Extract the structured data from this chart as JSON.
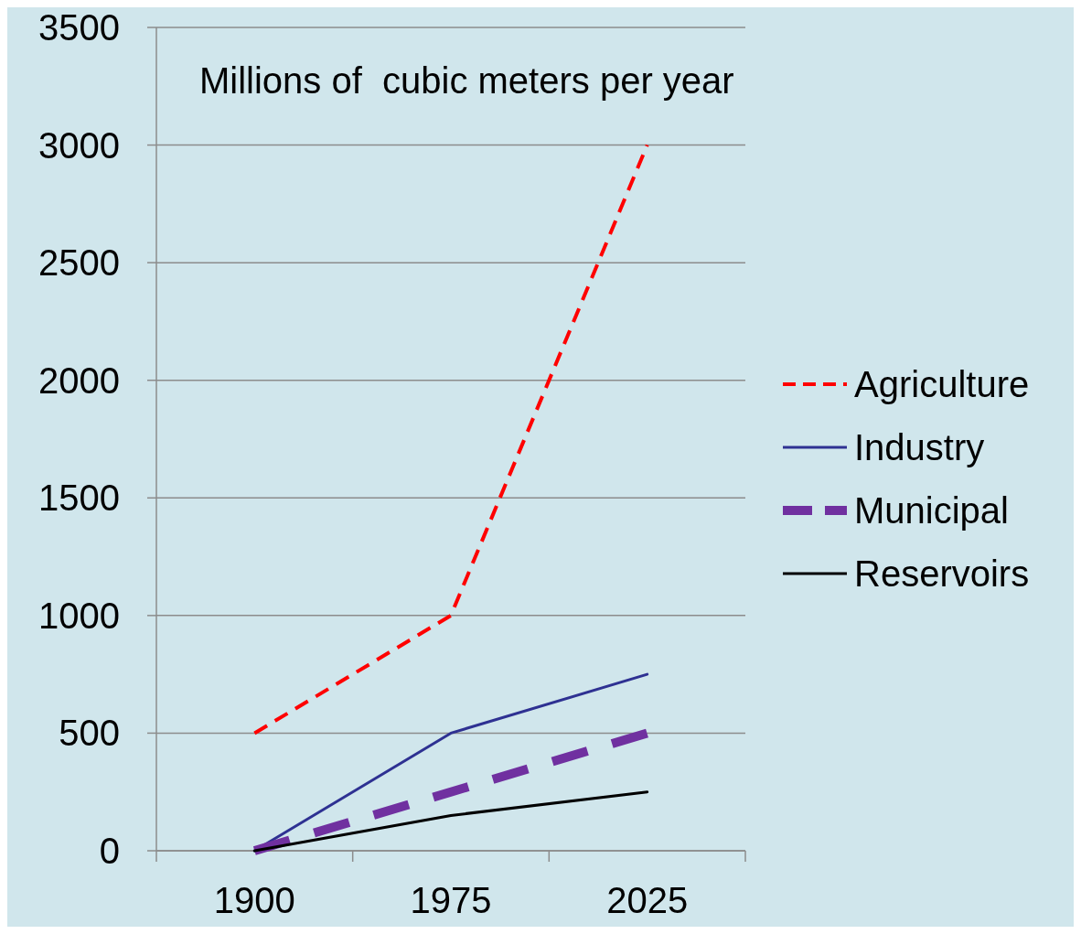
{
  "chart_data": {
    "type": "line",
    "ylabel": "Millions of  cubic meters per year",
    "categories": [
      "1900",
      "1975",
      "2025"
    ],
    "series": [
      {
        "name": "Agriculture",
        "color": "#ff0000",
        "values": [
          500,
          1000,
          3000
        ],
        "line_style": "dashed"
      },
      {
        "name": "Industry",
        "color": "#2e3192",
        "values": [
          0,
          500,
          750
        ],
        "line_style": "solid"
      },
      {
        "name": "Municipal",
        "color": "#7030a0",
        "values": [
          0,
          250,
          500
        ],
        "line_style": "dashed"
      },
      {
        "name": "Reservoirs",
        "color": "#000000",
        "values": [
          0,
          150,
          250
        ],
        "line_style": "solid"
      }
    ],
    "ylim": [
      0,
      3500
    ],
    "yticks": [
      0,
      500,
      1000,
      1500,
      2000,
      2500,
      3000,
      3500
    ],
    "grid": "y",
    "legend": "right",
    "marker": "none"
  }
}
